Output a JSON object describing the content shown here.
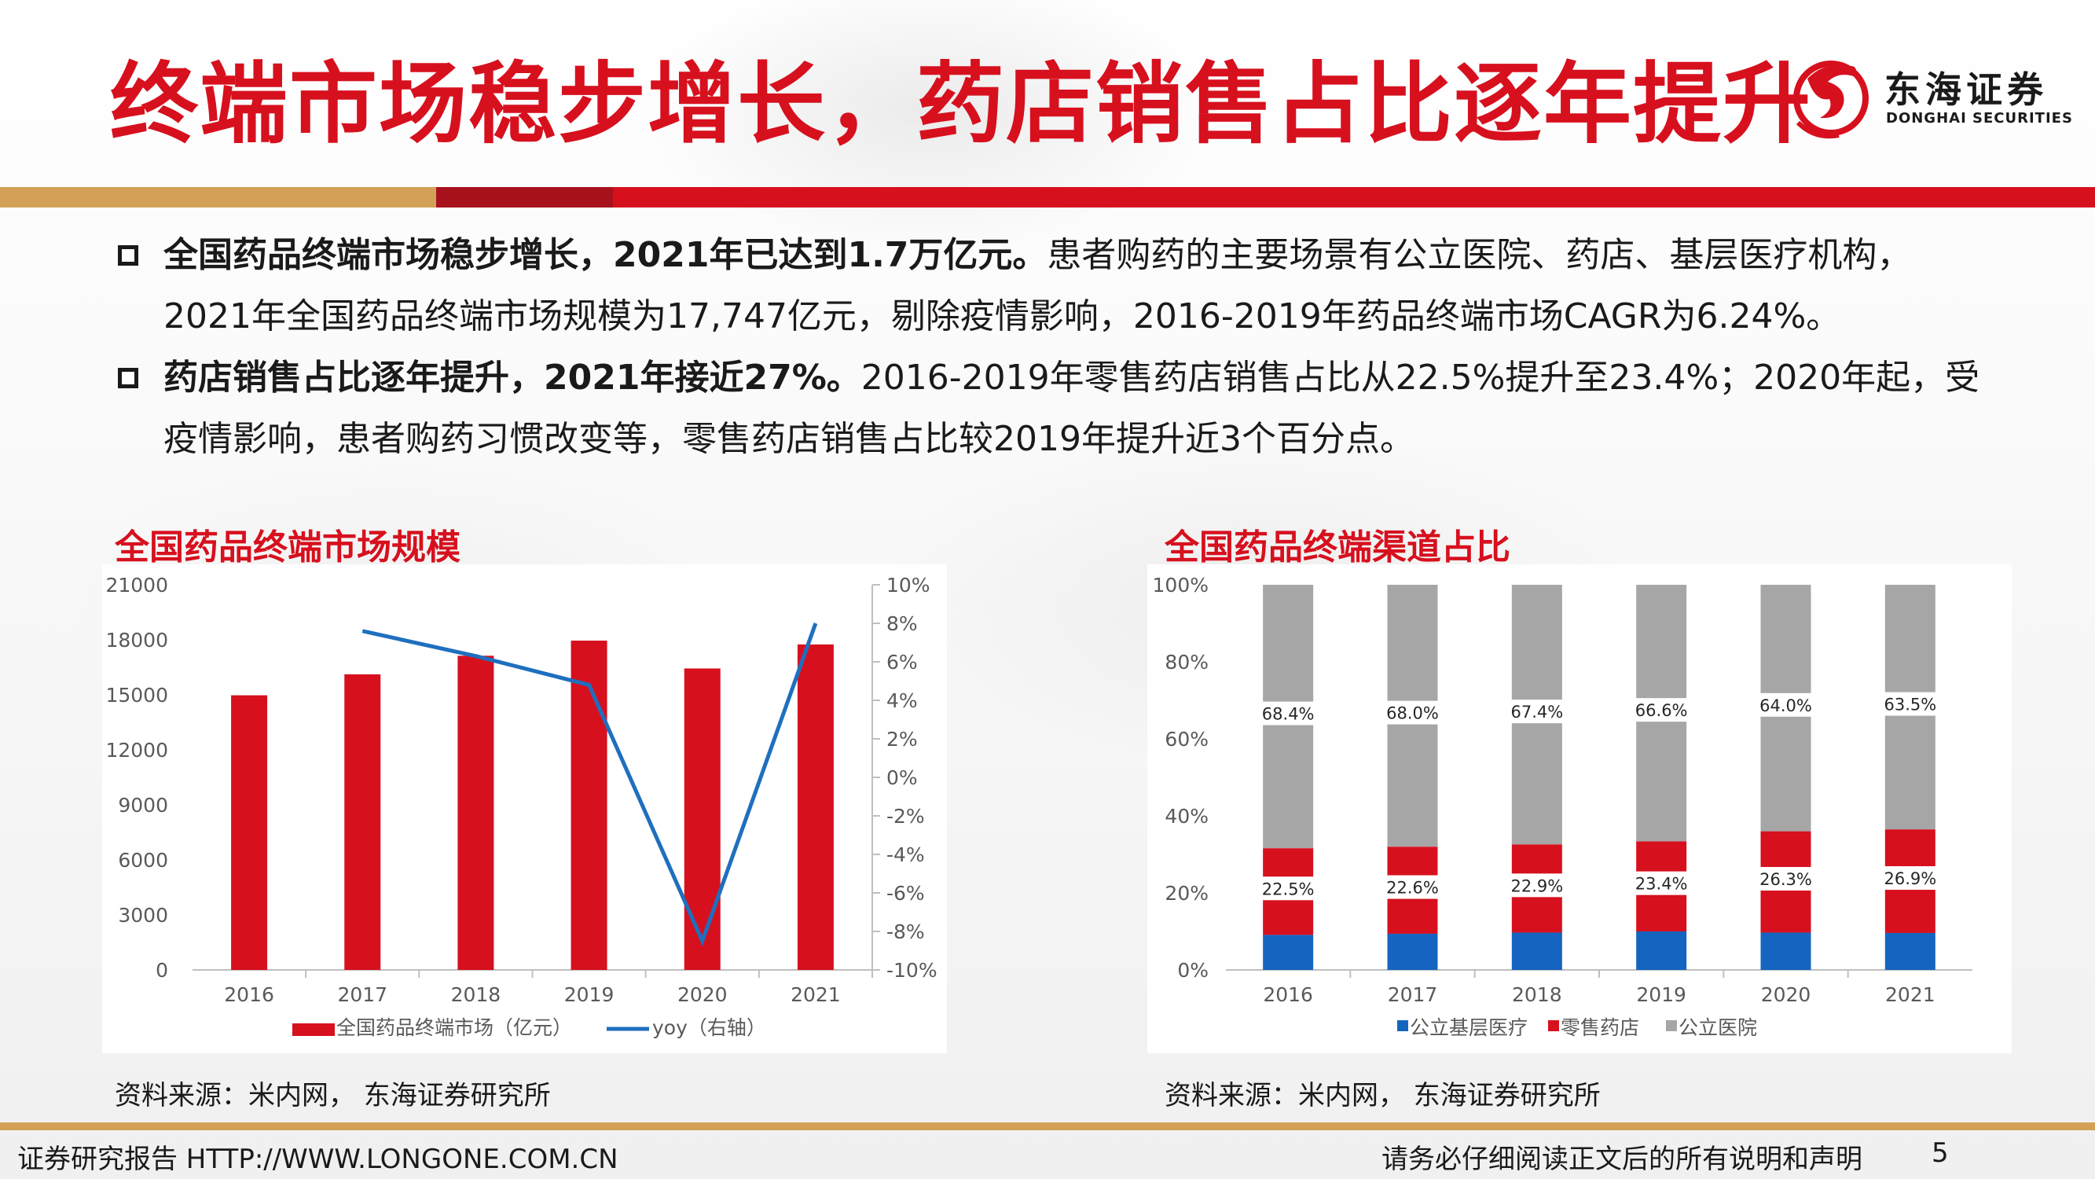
{
  "header": {
    "title": "终端市场稳步增长，药店销售占比逐年提升",
    "logo_cn": "东海证券",
    "logo_en": "DONGHAI SECURITIES"
  },
  "bullets": [
    {
      "bold": "全国药品终端市场稳步增长，2021年已达到1.7万亿元。",
      "text": "患者购药的主要场景有公立医院、药店、基层医疗机构，2021年全国药品终端市场规模为17,747亿元，剔除疫情影响，2016-2019年药品终端市场CAGR为6.24%。"
    },
    {
      "bold": "药店销售占比逐年提升，2021年接近27%。",
      "text": "2016-2019年零售药店销售占比从22.5%提升至23.4%；2020年起，受疫情影响，患者购药习惯改变等，零售药店销售占比较2019年提升近3个百分点。"
    }
  ],
  "left_chart": {
    "heading": "全国药品终端市场规模",
    "source": "资料来源：米内网，  东海证券研究所"
  },
  "right_chart": {
    "heading": "全国药品终端渠道占比",
    "source": "资料来源：米内网，  东海证券研究所"
  },
  "footer": {
    "left": "证券研究报告 HTTP://WWW.LONGONE.COM.CN",
    "center": "请务必仔细阅读正文后的所有说明和声明",
    "page": "5"
  },
  "colors": {
    "brand_red": "#d7101e",
    "line_blue": "#1f6fbf",
    "grass_blue": "#1565c0",
    "grey": "#a6a6a6",
    "gold": "#d2a157"
  },
  "chart_data": [
    {
      "type": "bar",
      "categories": [
        "2016",
        "2017",
        "2018",
        "2019",
        "2020",
        "2021"
      ],
      "series": [
        {
          "name": "全国药品终端市场（亿元）",
          "type": "bar",
          "axis": "left",
          "values": [
            14975,
            16118,
            17131,
            17955,
            16437,
            17747
          ]
        },
        {
          "name": "yoy（右轴）",
          "type": "line",
          "axis": "right",
          "values": [
            null,
            7.6,
            6.3,
            4.8,
            -8.5,
            8.0
          ]
        }
      ],
      "ylim": [
        0,
        21000
      ],
      "yticks": [
        "0",
        "3000",
        "6000",
        "9000",
        "12000",
        "15000",
        "18000",
        "21000"
      ],
      "y2lim": [
        -10,
        10
      ],
      "y2ticks": [
        "-10%",
        "-8%",
        "-6%",
        "-4%",
        "-2%",
        "0%",
        "2%",
        "4%",
        "6%",
        "8%",
        "10%"
      ],
      "legend": "bottom"
    },
    {
      "type": "bar",
      "stacked": true,
      "categories": [
        "2016",
        "2017",
        "2018",
        "2019",
        "2020",
        "2021"
      ],
      "series": [
        {
          "name": "公立基层医疗",
          "values": [
            9.1,
            9.4,
            9.7,
            10.0,
            9.7,
            9.6
          ]
        },
        {
          "name": "零售药店",
          "values": [
            22.5,
            22.6,
            22.9,
            23.4,
            26.3,
            26.9
          ]
        },
        {
          "name": "公立医院",
          "values": [
            68.4,
            68.0,
            67.4,
            66.6,
            64.0,
            63.5
          ]
        }
      ],
      "data_labels": {
        "零售药店": [
          "22.5%",
          "22.6%",
          "22.9%",
          "23.4%",
          "26.3%",
          "26.9%"
        ],
        "公立医院": [
          "68.4%",
          "68.0%",
          "67.4%",
          "66.6%",
          "64.0%",
          "63.5%"
        ]
      },
      "ylim": [
        0,
        100
      ],
      "yticks": [
        "0%",
        "20%",
        "40%",
        "60%",
        "80%",
        "100%"
      ],
      "legend": "bottom"
    }
  ]
}
